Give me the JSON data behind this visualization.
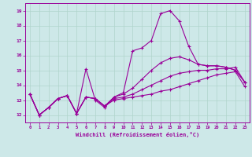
{
  "xlabel": "Windchill (Refroidissement éolien,°C)",
  "background_color": "#cde8e8",
  "grid_color": "#b0d4cc",
  "line_color": "#990099",
  "xlim": [
    -0.5,
    23.5
  ],
  "ylim": [
    11.5,
    19.5
  ],
  "yticks": [
    12,
    13,
    14,
    15,
    16,
    17,
    18,
    19
  ],
  "xticks": [
    0,
    1,
    2,
    3,
    4,
    5,
    6,
    7,
    8,
    9,
    10,
    11,
    12,
    13,
    14,
    15,
    16,
    17,
    18,
    19,
    20,
    21,
    22,
    23
  ],
  "line1_x": [
    0,
    1,
    2,
    3,
    4,
    5,
    6,
    7,
    8,
    9,
    10,
    11,
    12,
    13,
    14,
    15,
    16,
    17,
    18,
    19,
    20,
    21,
    22,
    23
  ],
  "line1_y": [
    13.4,
    12.0,
    12.5,
    13.1,
    13.3,
    12.1,
    13.2,
    13.1,
    12.6,
    13.0,
    13.1,
    13.2,
    13.3,
    13.4,
    13.6,
    13.7,
    13.9,
    14.1,
    14.3,
    14.5,
    14.7,
    14.8,
    14.9,
    13.9
  ],
  "line2_x": [
    0,
    1,
    2,
    3,
    4,
    5,
    6,
    7,
    8,
    9,
    10,
    11,
    12,
    13,
    14,
    15,
    16,
    17,
    18,
    19,
    20,
    21,
    22,
    23
  ],
  "line2_y": [
    13.4,
    12.0,
    12.5,
    13.1,
    13.3,
    12.1,
    13.2,
    13.1,
    12.6,
    13.1,
    13.2,
    13.4,
    13.7,
    14.0,
    14.3,
    14.6,
    14.8,
    14.9,
    15.0,
    15.0,
    15.1,
    15.1,
    15.2,
    14.2
  ],
  "line3_x": [
    0,
    1,
    2,
    3,
    4,
    5,
    6,
    7,
    8,
    9,
    10,
    11,
    12,
    13,
    14,
    15,
    16,
    17,
    18,
    19,
    20,
    21,
    22,
    23
  ],
  "line3_y": [
    13.4,
    12.0,
    12.5,
    13.1,
    13.3,
    12.1,
    13.2,
    13.1,
    12.6,
    13.2,
    13.4,
    13.8,
    14.4,
    15.0,
    15.5,
    15.8,
    15.9,
    15.7,
    15.4,
    15.3,
    15.3,
    15.2,
    15.0,
    14.2
  ],
  "line4_x": [
    0,
    1,
    2,
    3,
    4,
    5,
    6,
    7,
    8,
    9,
    10,
    11,
    12,
    13,
    14,
    15,
    16,
    17,
    18,
    19,
    20,
    21,
    22,
    23
  ],
  "line4_y": [
    13.4,
    12.0,
    12.5,
    13.1,
    13.3,
    12.1,
    15.1,
    13.0,
    12.5,
    13.2,
    13.5,
    16.3,
    16.5,
    17.0,
    18.8,
    19.0,
    18.3,
    16.6,
    15.4,
    15.3,
    15.3,
    15.2,
    15.0,
    14.2
  ]
}
